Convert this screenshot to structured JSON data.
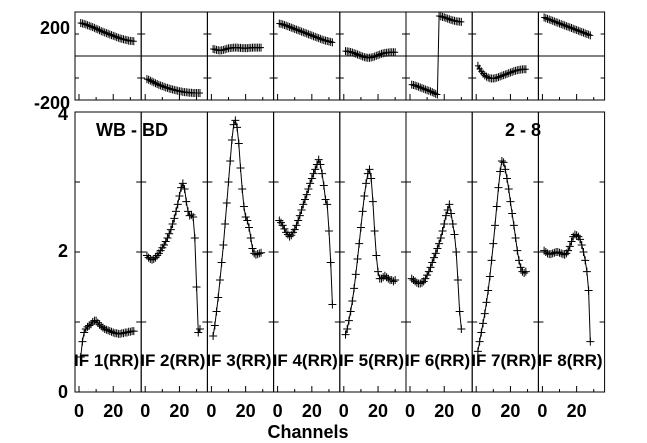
{
  "chart_data": {
    "type": "line",
    "xlabel": "Channels",
    "baseline_label": "WB - BD",
    "corner_label": "2 - 8",
    "x_tick_labels": [
      "0",
      "20"
    ],
    "phase": {
      "ylim": [
        -200,
        200
      ],
      "y_tick_labels": [
        "200",
        "-200"
      ]
    },
    "amp": {
      "ylim": [
        0,
        4
      ],
      "y_tick_labels": [
        "0",
        "2",
        "4"
      ]
    },
    "xlim": [
      0,
      34
    ],
    "panels": [
      {
        "label": "IF 1(RR)",
        "amp": [
          0.5,
          0.72,
          0.85,
          0.9,
          0.93,
          0.95,
          0.97,
          1.0,
          1.02,
          1.02,
          0.99,
          0.96,
          0.94,
          0.92,
          0.9,
          0.89,
          0.88,
          0.87,
          0.86,
          0.85,
          0.84,
          0.84,
          0.83,
          0.83,
          0.84,
          0.84,
          0.85,
          0.85,
          0.86,
          0.86,
          0.87,
          0.87
        ],
        "phase": [
          150,
          148,
          146,
          143,
          140,
          137,
          134,
          131,
          128,
          124,
          121,
          117,
          113,
          110,
          107,
          104,
          101,
          98,
          95,
          92,
          89,
          86,
          83,
          80,
          78,
          76,
          74,
          72,
          70,
          69,
          68,
          67
        ]
      },
      {
        "label": "IF 2(RR)",
        "amp": [
          1.95,
          1.92,
          1.9,
          1.89,
          1.9,
          1.92,
          1.95,
          1.98,
          2.02,
          2.06,
          2.1,
          2.15,
          2.2,
          2.26,
          2.32,
          2.4,
          2.48,
          2.58,
          2.68,
          2.8,
          2.92,
          2.98,
          2.9,
          2.72,
          2.58,
          2.52,
          2.53,
          2.5,
          2.2,
          1.5,
          0.85,
          0.9
        ],
        "phase": [
          -105,
          -108,
          -112,
          -116,
          -120,
          -124,
          -127,
          -131,
          -134,
          -137,
          -140,
          -143,
          -145,
          -148,
          -150,
          -152,
          -154,
          -156,
          -158,
          -160,
          -161,
          -163,
          -164,
          -165,
          -166,
          -167,
          -167,
          -168,
          -168,
          -168,
          -168,
          -168
        ]
      },
      {
        "label": "IF 3(RR)",
        "amp": [
          0.8,
          0.95,
          1.15,
          1.35,
          1.6,
          1.85,
          2.1,
          2.4,
          2.7,
          3.0,
          3.3,
          3.6,
          3.82,
          3.88,
          3.78,
          3.55,
          3.2,
          2.9,
          2.65,
          2.5,
          2.45,
          2.35,
          2.2,
          2.05,
          1.98,
          1.96,
          1.97,
          1.98,
          1.99
        ],
        "phase": [
          32,
          30,
          28,
          26,
          25,
          26,
          28,
          30,
          33,
          35,
          36,
          37,
          38,
          38,
          38,
          37,
          37,
          36,
          36,
          36,
          36,
          37,
          37,
          38,
          38,
          38,
          38,
          38,
          38
        ]
      },
      {
        "label": "IF 4(RR)",
        "amp": [
          2.45,
          2.42,
          2.38,
          2.33,
          2.28,
          2.25,
          2.22,
          2.24,
          2.28,
          2.32,
          2.38,
          2.45,
          2.52,
          2.6,
          2.68,
          2.75,
          2.82,
          2.9,
          2.98,
          3.05,
          3.12,
          3.18,
          3.25,
          3.32,
          3.25,
          3.12,
          2.95,
          2.75,
          2.68,
          2.3,
          1.85,
          1.25
        ],
        "phase": [
          148,
          146,
          144,
          141,
          138,
          135,
          132,
          129,
          126,
          123,
          120,
          117,
          114,
          111,
          108,
          105,
          102,
          99,
          96,
          93,
          90,
          87,
          84,
          81,
          78,
          75,
          72,
          70,
          68,
          66,
          64,
          62
        ]
      },
      {
        "label": "IF 5(RR)",
        "amp": [
          0.82,
          0.9,
          1.02,
          1.15,
          1.3,
          1.48,
          1.68,
          1.9,
          2.12,
          2.35,
          2.58,
          2.8,
          2.98,
          3.12,
          3.18,
          3.05,
          2.72,
          2.3,
          1.95,
          1.72,
          1.62,
          1.62,
          1.64,
          1.66,
          1.64,
          1.62,
          1.6,
          1.6,
          1.58,
          1.6
        ],
        "phase": [
          22,
          21,
          20,
          18,
          16,
          13,
          10,
          7,
          4,
          1,
          -2,
          -5,
          -7,
          -8,
          -8,
          -7,
          -5,
          -2,
          1,
          4,
          7,
          10,
          12,
          14,
          15,
          16,
          17,
          17,
          17,
          17
        ]
      },
      {
        "label": "IF 6(RR)",
        "amp": [
          1.62,
          1.6,
          1.58,
          1.56,
          1.55,
          1.55,
          1.56,
          1.58,
          1.62,
          1.67,
          1.72,
          1.78,
          1.85,
          1.92,
          1.98,
          2.05,
          2.12,
          2.2,
          2.3,
          2.4,
          2.52,
          2.6,
          2.68,
          2.55,
          2.4,
          2.25,
          2.0,
          1.6,
          1.15,
          0.9
        ],
        "phase": [
          -130,
          -132,
          -134,
          -137,
          -140,
          -143,
          -146,
          -149,
          -152,
          -155,
          -158,
          -161,
          -164,
          -168,
          -172,
          -175,
          182,
          180,
          178,
          176,
          173,
          170,
          167,
          164,
          162,
          160,
          158,
          157,
          156,
          155
        ]
      },
      {
        "label": "IF 7(RR)",
        "amp": [
          0.58,
          0.72,
          0.85,
          0.98,
          1.12,
          1.28,
          1.45,
          1.65,
          1.88,
          2.12,
          2.38,
          2.65,
          2.92,
          3.15,
          3.3,
          3.28,
          3.18,
          3.05,
          2.9,
          2.72,
          2.55,
          2.38,
          2.2,
          2.02,
          1.88,
          1.78,
          1.72,
          1.7,
          1.72
        ],
        "phase": [
          -45,
          -58,
          -70,
          -80,
          -88,
          -94,
          -98,
          -101,
          -102,
          -102,
          -101,
          -99,
          -96,
          -93,
          -90,
          -87,
          -84,
          -81,
          -78,
          -75,
          -72,
          -69,
          -67,
          -65,
          -63,
          -62,
          -61,
          -60,
          -60
        ]
      },
      {
        "label": "IF 8(RR)",
        "amp": [
          2.02,
          2.0,
          1.98,
          1.97,
          1.97,
          1.98,
          1.99,
          2.0,
          2.0,
          1.99,
          1.98,
          1.97,
          1.96,
          1.98,
          2.02,
          2.08,
          2.15,
          2.22,
          2.25,
          2.24,
          2.22,
          2.18,
          2.1,
          2.0,
          1.88,
          1.72,
          1.45,
          0.72
        ],
        "phase": [
          175,
          172,
          169,
          166,
          163,
          160,
          157,
          154,
          151,
          148,
          145,
          142,
          139,
          136,
          133,
          130,
          127,
          124,
          121,
          118,
          115,
          112,
          109,
          106,
          103,
          100,
          97,
          94
        ]
      }
    ]
  }
}
